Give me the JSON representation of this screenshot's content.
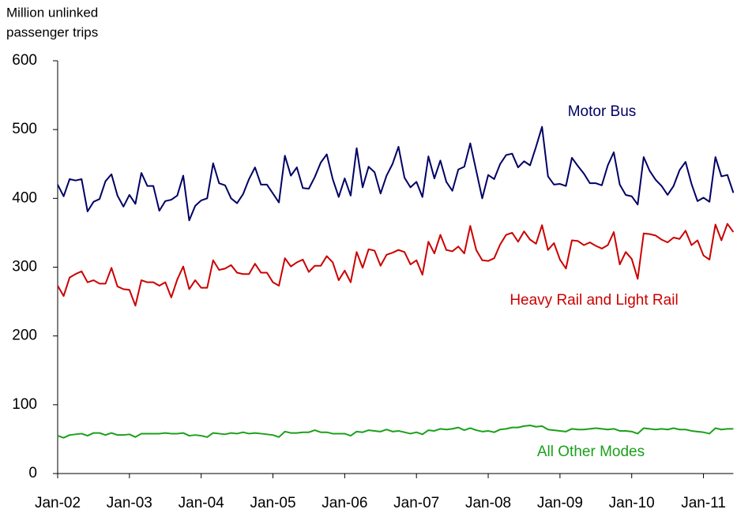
{
  "chart_data": {
    "type": "line",
    "y_label": [
      "Million unlinked",
      "passenger trips"
    ],
    "categories": [
      "Jan-02",
      null,
      null,
      null,
      null,
      null,
      null,
      null,
      null,
      null,
      null,
      null,
      "Jan-03",
      null,
      null,
      null,
      null,
      null,
      null,
      null,
      null,
      null,
      null,
      null,
      "Jan-04",
      null,
      null,
      null,
      null,
      null,
      null,
      null,
      null,
      null,
      null,
      null,
      "Jan-05",
      null,
      null,
      null,
      null,
      null,
      null,
      null,
      null,
      null,
      null,
      null,
      "Jan-06",
      null,
      null,
      null,
      null,
      null,
      null,
      null,
      null,
      null,
      null,
      null,
      "Jan-07",
      null,
      null,
      null,
      null,
      null,
      null,
      null,
      null,
      null,
      null,
      null,
      "Jan-08",
      null,
      null,
      null,
      null,
      null,
      null,
      null,
      null,
      null,
      null,
      null,
      "Jan-09",
      null,
      null,
      null,
      null,
      null,
      null,
      null,
      null,
      null,
      null,
      null,
      "Jan-10",
      null,
      null,
      null,
      null,
      null,
      null,
      null,
      null,
      null,
      null,
      null,
      "Jan-11",
      null,
      null,
      null,
      null,
      null
    ],
    "series": [
      {
        "name": "Motor Bus",
        "color": "#000066",
        "values": [
          420,
          403,
          428,
          426,
          428,
          381,
          395,
          399,
          425,
          435,
          404,
          388,
          405,
          392,
          437,
          418,
          418,
          382,
          396,
          398,
          404,
          433,
          368,
          389,
          397,
          400,
          451,
          422,
          419,
          400,
          393,
          406,
          428,
          445,
          420,
          420,
          407,
          394,
          462,
          433,
          445,
          415,
          414,
          431,
          452,
          464,
          428,
          402,
          429,
          404,
          473,
          416,
          446,
          438,
          407,
          433,
          450,
          475,
          430,
          416,
          424,
          402,
          461,
          429,
          455,
          424,
          411,
          442,
          446,
          480,
          440,
          400,
          434,
          428,
          450,
          463,
          465,
          445,
          454,
          448,
          475,
          504,
          432,
          420,
          421,
          418,
          459,
          447,
          436,
          422,
          422,
          419,
          448,
          467,
          420,
          405,
          403,
          391,
          460,
          440,
          427,
          418,
          405,
          418,
          441,
          453,
          421,
          396,
          401,
          395,
          460,
          432,
          434,
          408
        ]
      },
      {
        "name": "Heavy Rail and Light Rail",
        "color": "#cc0000",
        "values": [
          273,
          258,
          285,
          290,
          294,
          278,
          281,
          276,
          276,
          299,
          272,
          268,
          267,
          244,
          281,
          278,
          278,
          273,
          278,
          256,
          282,
          301,
          268,
          281,
          270,
          270,
          310,
          296,
          298,
          303,
          292,
          290,
          290,
          305,
          292,
          292,
          278,
          273,
          313,
          301,
          307,
          311,
          293,
          302,
          302,
          316,
          307,
          281,
          295,
          278,
          322,
          299,
          326,
          324,
          302,
          318,
          321,
          325,
          322,
          304,
          310,
          289,
          337,
          320,
          347,
          325,
          323,
          330,
          320,
          360,
          325,
          310,
          309,
          313,
          333,
          347,
          350,
          337,
          352,
          340,
          334,
          361,
          325,
          335,
          311,
          298,
          339,
          338,
          332,
          336,
          331,
          327,
          332,
          351,
          304,
          322,
          312,
          283,
          349,
          348,
          346,
          340,
          336,
          343,
          341,
          353,
          332,
          339,
          317,
          311,
          362,
          339,
          363,
          351
        ]
      },
      {
        "name": "All Other Modes",
        "color": "#1aa01a",
        "values": [
          55,
          52,
          56,
          57,
          58,
          55,
          59,
          59,
          56,
          59,
          56,
          56,
          57,
          53,
          58,
          58,
          58,
          58,
          59,
          58,
          58,
          59,
          55,
          56,
          55,
          53,
          59,
          58,
          57,
          59,
          58,
          60,
          58,
          59,
          58,
          57,
          56,
          53,
          61,
          59,
          59,
          60,
          60,
          63,
          60,
          60,
          58,
          58,
          58,
          55,
          61,
          60,
          63,
          62,
          61,
          64,
          61,
          62,
          60,
          58,
          60,
          57,
          63,
          62,
          65,
          64,
          65,
          67,
          63,
          66,
          63,
          61,
          62,
          60,
          64,
          65,
          67,
          67,
          69,
          70,
          68,
          69,
          64,
          63,
          62,
          61,
          65,
          64,
          64,
          65,
          66,
          65,
          64,
          65,
          62,
          62,
          61,
          58,
          66,
          65,
          64,
          65,
          64,
          66,
          64,
          64,
          62,
          61,
          60,
          58,
          66,
          64,
          65,
          65
        ]
      }
    ],
    "ylim": [
      0,
      600
    ],
    "yticks": [
      0,
      100,
      200,
      300,
      400,
      500,
      600
    ]
  }
}
